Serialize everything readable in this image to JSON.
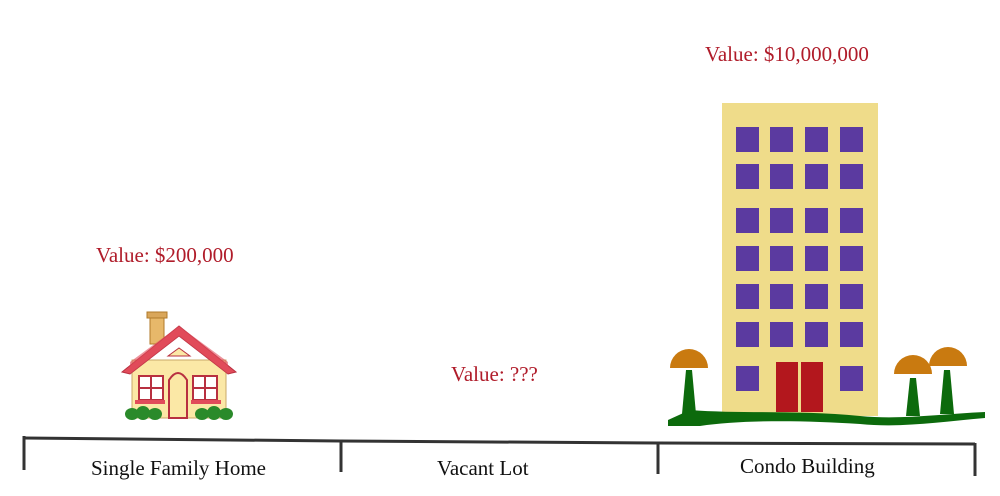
{
  "lots": [
    {
      "name": "Single Family Home",
      "value_text": "Value: $200,000"
    },
    {
      "name": "Vacant Lot",
      "value_text": "Value: ???"
    },
    {
      "name": "Condo Building",
      "value_text": "Value: $10,000,000"
    }
  ],
  "colors": {
    "value_text": "#b01c2a",
    "label_text": "#111111",
    "timeline": "#333333",
    "house_wall": "#fbe8a6",
    "house_roof": "#e14b5a",
    "chimney": "#e7b86a",
    "building_wall": "#efdc8a",
    "window": "#5b3aa0",
    "door": "#b3171d",
    "tree_canopy": "#c97a10",
    "grass": "#0c6a0c"
  }
}
